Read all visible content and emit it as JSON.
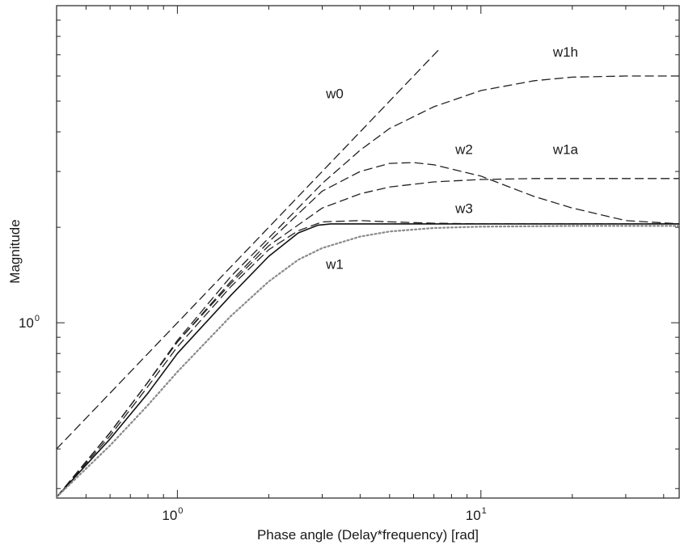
{
  "chart_data": {
    "type": "line",
    "xscale": "log",
    "yscale": "log",
    "xlim": [
      0.4,
      45
    ],
    "ylim": [
      0.28,
      10
    ],
    "xlabel": "Phase angle (Delay*frequency) [rad]",
    "ylabel": "Magnitude",
    "x_ticks": [
      {
        "base": "10",
        "exp": "0",
        "value": 1
      },
      {
        "base": "10",
        "exp": "1",
        "value": 10
      }
    ],
    "y_ticks": [
      {
        "base": "10",
        "exp": "0",
        "value": 1
      }
    ],
    "grid": false,
    "series": [
      {
        "name": "w0",
        "style": "dashed",
        "color": "#222222",
        "x": [
          0.4,
          0.6,
          1,
          1.5,
          2.5,
          4,
          7.4
        ],
        "y": [
          0.4,
          0.6,
          1,
          1.5,
          2.5,
          4,
          7.4
        ],
        "label_at": [
          3.3,
          5.1
        ]
      },
      {
        "name": "w1h",
        "style": "dashed",
        "color": "#222222",
        "x": [
          0.4,
          0.6,
          0.8,
          1,
          1.5,
          2,
          3,
          4,
          5,
          7,
          10,
          15,
          20,
          30,
          45
        ],
        "y": [
          0.282,
          0.45,
          0.65,
          0.88,
          1.4,
          1.85,
          2.75,
          3.5,
          4.1,
          4.8,
          5.4,
          5.8,
          5.95,
          6.0,
          6.0
        ],
        "label_at": [
          19.0,
          6.9
        ]
      },
      {
        "name": "w2",
        "style": "dashed",
        "color": "#222222",
        "x": [
          0.4,
          0.6,
          0.8,
          1,
          1.5,
          2,
          3,
          4,
          5,
          6,
          7,
          10,
          15,
          20,
          30,
          45
        ],
        "y": [
          0.282,
          0.45,
          0.65,
          0.87,
          1.35,
          1.8,
          2.6,
          3.0,
          3.18,
          3.2,
          3.15,
          2.9,
          2.5,
          2.3,
          2.1,
          2.05
        ],
        "label_at": [
          8.8,
          3.4
        ]
      },
      {
        "name": "w1a",
        "style": "dashed",
        "color": "#222222",
        "x": [
          0.4,
          0.6,
          0.8,
          1,
          1.5,
          2,
          3,
          4,
          5,
          7,
          10,
          15,
          20,
          30,
          45
        ],
        "y": [
          0.282,
          0.45,
          0.65,
          0.87,
          1.33,
          1.75,
          2.3,
          2.55,
          2.68,
          2.78,
          2.83,
          2.85,
          2.85,
          2.85,
          2.85
        ],
        "label_at": [
          19.0,
          3.4
        ]
      },
      {
        "name": "w3",
        "style": "dashed",
        "color": "#222222",
        "x": [
          0.4,
          0.6,
          0.8,
          1,
          1.5,
          2,
          2.5,
          3,
          4,
          5,
          7,
          10,
          20,
          45
        ],
        "y": [
          0.282,
          0.44,
          0.63,
          0.84,
          1.3,
          1.7,
          1.95,
          2.08,
          2.1,
          2.08,
          2.06,
          2.05,
          2.05,
          2.05
        ],
        "label_at": [
          8.8,
          2.22
        ]
      },
      {
        "name": "",
        "style": "solid",
        "color": "#111111",
        "x": [
          0.4,
          0.6,
          0.8,
          1,
          1.5,
          2,
          2.5,
          2.9,
          3.2,
          4,
          6,
          10,
          20,
          45
        ],
        "y": [
          0.282,
          0.43,
          0.6,
          0.8,
          1.22,
          1.62,
          1.92,
          2.03,
          2.05,
          2.05,
          2.05,
          2.05,
          2.05,
          2.05
        ]
      },
      {
        "name": "w1",
        "style": "dotted",
        "color": "#8a8a8a",
        "x": [
          0.4,
          0.6,
          0.8,
          1,
          1.5,
          2,
          2.5,
          3,
          4,
          5,
          7,
          10,
          20,
          45
        ],
        "y": [
          0.282,
          0.41,
          0.55,
          0.7,
          1.05,
          1.35,
          1.58,
          1.72,
          1.87,
          1.94,
          1.99,
          2.01,
          2.02,
          2.02
        ],
        "label_at": [
          3.3,
          1.48
        ]
      }
    ]
  }
}
